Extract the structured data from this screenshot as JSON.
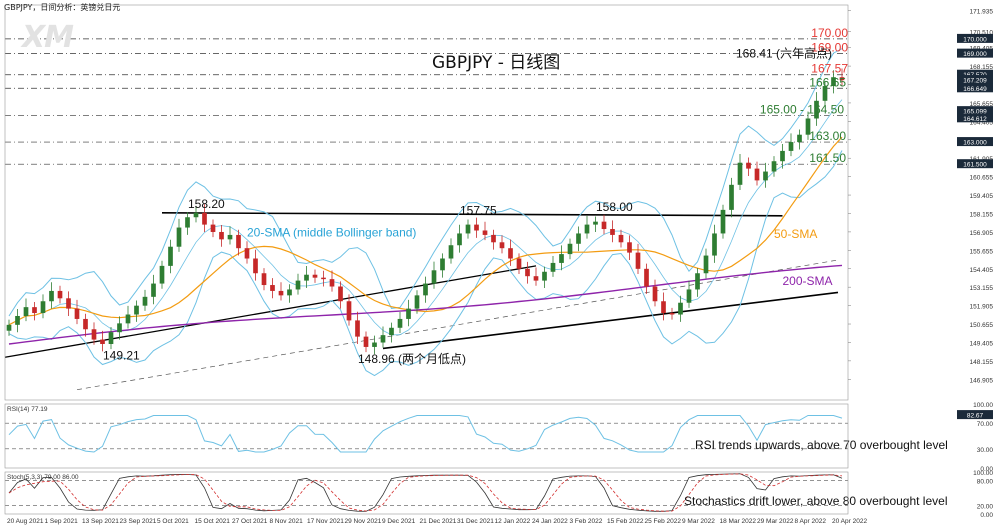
{
  "header": {
    "symbol_line": "GBPJPY，日间分析：英镑兑日元",
    "logo": "XM",
    "title": "GBPJPY - 日线图"
  },
  "colors": {
    "candle_up": "#2e7d32",
    "candle_down": "#c62828",
    "bollinger": "#6ec1e4",
    "sma50": "#f39c12",
    "sma200": "#8e24aa",
    "resistance_text": "#e53935",
    "support_text": "#2e7d32",
    "annotation_blue": "#29a3d6"
  },
  "chart_data": [
    {
      "type": "candlestick",
      "panel": "price",
      "x_ticks": [
        "20 Aug 2021",
        "1 Sep 2021",
        "13 Sep 2021",
        "23 Sep 2021",
        "5 Oct 2021",
        "15 Oct 2021",
        "27 Oct 2021",
        "8 Nov 2021",
        "17 Nov 2021",
        "29 Nov 2021",
        "9 Dec 2021",
        "21 Dec 2021",
        "31 Dec 2021",
        "12 Jan 2022",
        "24 Jan 2022",
        "3 Feb 2022",
        "15 Feb 2022",
        "25 Feb 2022",
        "9 Mar 2022",
        "18 Mar 2022",
        "29 Mar 2022",
        "8 Apr 2022",
        "20 Apr 2022"
      ],
      "y_ticks": [
        "171.935",
        "170.510",
        "169.405",
        "168.155",
        "166.905",
        "165.655",
        "164.405",
        "163.155",
        "161.905",
        "160.655",
        "159.405",
        "158.155",
        "156.905",
        "155.655",
        "154.405",
        "153.155",
        "151.905",
        "150.655",
        "149.405",
        "148.155",
        "146.905"
      ],
      "ylim": [
        145.5,
        172.3
      ],
      "close_approx": [
        150.6,
        151.2,
        151.8,
        151.4,
        152.2,
        152.9,
        152.4,
        151.7,
        151.0,
        150.3,
        149.6,
        149.3,
        150.1,
        150.7,
        151.3,
        151.9,
        152.5,
        153.4,
        154.6,
        155.9,
        157.2,
        157.9,
        158.2,
        157.4,
        156.9,
        156.4,
        156.7,
        155.8,
        155.1,
        154.1,
        153.3,
        152.9,
        152.6,
        153.0,
        153.6,
        154.0,
        153.8,
        153.7,
        153.2,
        152.2,
        150.9,
        149.8,
        149.1,
        149.4,
        149.9,
        150.4,
        151.0,
        151.7,
        152.6,
        153.4,
        154.3,
        155.1,
        156.0,
        156.8,
        157.4,
        157.0,
        156.7,
        156.2,
        155.8,
        155.1,
        154.4,
        153.9,
        153.6,
        154.2,
        154.8,
        155.4,
        156.1,
        156.8,
        157.4,
        157.6,
        157.1,
        156.7,
        156.2,
        155.5,
        154.4,
        153.2,
        152.2,
        151.4,
        151.3,
        152.1,
        153.0,
        154.1,
        155.3,
        156.8,
        158.4,
        160.1,
        161.6,
        161.2,
        160.4,
        161.0,
        161.7,
        162.4,
        163.0,
        163.5,
        164.6,
        165.8,
        166.8,
        167.4,
        167.2
      ],
      "price_labels_right": [
        {
          "value": "171.935"
        },
        {
          "value": "170.000",
          "highlight": true
        },
        {
          "value": "169.000",
          "highlight": true
        },
        {
          "value": "167.570",
          "highlight": true
        },
        {
          "value": "167.209",
          "highlight": true
        },
        {
          "value": "166.649",
          "highlight": true
        },
        {
          "value": "165.099",
          "highlight": true
        },
        {
          "value": "164.612",
          "highlight": true
        },
        {
          "value": "163.000",
          "highlight": true
        },
        {
          "value": "161.500",
          "highlight": true
        }
      ],
      "levels": [
        {
          "label": "170.00",
          "value": 170.0,
          "kind": "resistance"
        },
        {
          "label": "169.00",
          "value": 169.0,
          "kind": "resistance"
        },
        {
          "label": "167.57",
          "value": 167.57,
          "kind": "resistance"
        },
        {
          "label": "166.65",
          "value": 166.65,
          "kind": "support"
        },
        {
          "label": "165.00 - 164.50",
          "value": 164.8,
          "kind": "support"
        },
        {
          "label": "163.00",
          "value": 163.0,
          "kind": "support"
        },
        {
          "label": "161.50",
          "value": 161.5,
          "kind": "support"
        }
      ],
      "annotations": [
        {
          "text": "158.20",
          "x_index": 22,
          "value": 158.2
        },
        {
          "text": "157.75",
          "x_index": 54,
          "value": 157.75
        },
        {
          "text": "158.00",
          "x_index": 70,
          "value": 158.0
        },
        {
          "text": "149.21",
          "x_index": 12,
          "value": 149.21
        },
        {
          "text": "148.96 (两个月低点)",
          "x_index": 42,
          "value": 148.96
        },
        {
          "text": "168.41 (六年高点)",
          "x_index": 98,
          "value": 168.41
        }
      ],
      "indicator_labels": {
        "bollinger": "20-SMA (middle Bollinger band)",
        "sma50": "50-SMA",
        "sma200": "200-SMA"
      }
    },
    {
      "type": "line",
      "panel": "rsi",
      "title": "RSI(14) 77.19",
      "value_label": "82.67",
      "y_ticks": [
        "100.00",
        "70.00",
        "30.00",
        "0.00"
      ],
      "ylim": [
        0,
        100
      ],
      "overbought": 70,
      "oversold": 30,
      "note": "RSI trends upwards, above 70 overbought level"
    },
    {
      "type": "line",
      "panel": "stochastic",
      "title": "Stoch(5,3,3) 79.00 86.00",
      "y_ticks": [
        "100.00",
        "80.00",
        "20.00",
        "0.00"
      ],
      "ylim": [
        0,
        100
      ],
      "overbought": 80,
      "oversold": 20,
      "note": "Stochastics drift lower, above 80 overbought level"
    }
  ]
}
